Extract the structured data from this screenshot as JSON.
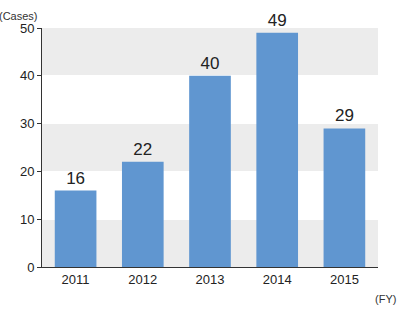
{
  "chart_data": {
    "type": "bar",
    "categories": [
      "2011",
      "2012",
      "2013",
      "2014",
      "2015"
    ],
    "values": [
      16,
      22,
      40,
      49,
      29
    ],
    "color": "#6096d0",
    "ylim": [
      0,
      50
    ],
    "yticks": [
      0,
      10,
      20,
      30,
      40,
      50
    ],
    "grid": true,
    "data_labels": true,
    "y_label": "(Cases)",
    "x_label": "(FY)"
  }
}
